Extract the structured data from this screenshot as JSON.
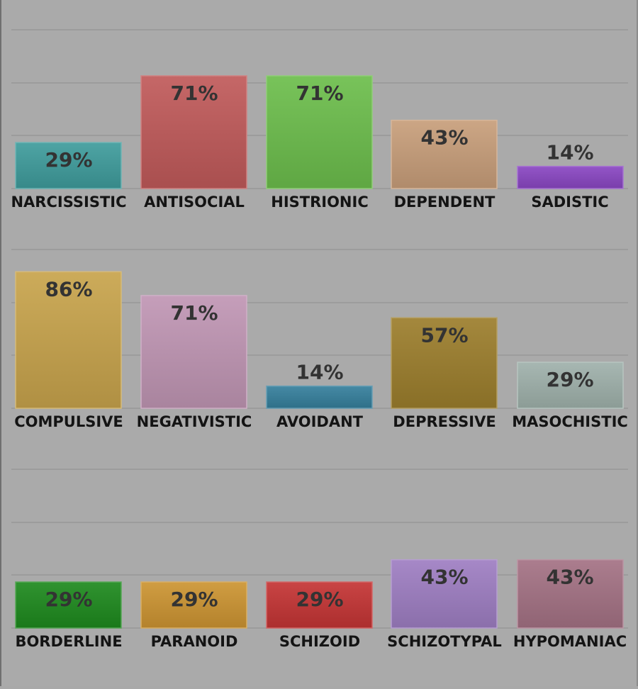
{
  "chart_data": [
    {
      "type": "bar",
      "categories": [
        "NARCISSISTIC",
        "ANTISOCIAL",
        "HISTRIONIC",
        "DEPENDENT",
        "SADISTIC"
      ],
      "values": [
        29,
        71,
        71,
        43,
        14
      ],
      "value_labels": [
        "29%",
        "71%",
        "71%",
        "43%",
        "14%"
      ],
      "colors": [
        "#3f9c9c",
        "#c05a5a",
        "#6cbe4c",
        "#c89e7a",
        "#8a46c2"
      ],
      "ylim": [
        0,
        100
      ],
      "grid": true
    },
    {
      "type": "bar",
      "categories": [
        "COMPULSIVE",
        "NEGATIVISTIC",
        "AVOIDANT",
        "DEPRESSIVE",
        "MASOCHISTIC"
      ],
      "values": [
        86,
        71,
        14,
        57,
        29
      ],
      "value_labels": [
        "86%",
        "71%",
        "14%",
        "57%",
        "29%"
      ],
      "colors": [
        "#c8a44c",
        "#c096b4",
        "#357f9c",
        "#9c7e2c",
        "#9fb1ab"
      ],
      "ylim": [
        0,
        100
      ],
      "grid": true
    },
    {
      "type": "bar",
      "categories": [
        "BORDERLINE",
        "PARANOID",
        "SCHIZOID",
        "SCHIZOTYPAL",
        "HYPOMANIAC"
      ],
      "values": [
        29,
        29,
        29,
        43,
        43
      ],
      "value_labels": [
        "29%",
        "29%",
        "29%",
        "43%",
        "43%"
      ],
      "colors": [
        "#1e8a1e",
        "#cc9432",
        "#c43434",
        "#9e7ec2",
        "#a47284"
      ],
      "ylim": [
        0,
        100
      ],
      "grid": true
    }
  ]
}
